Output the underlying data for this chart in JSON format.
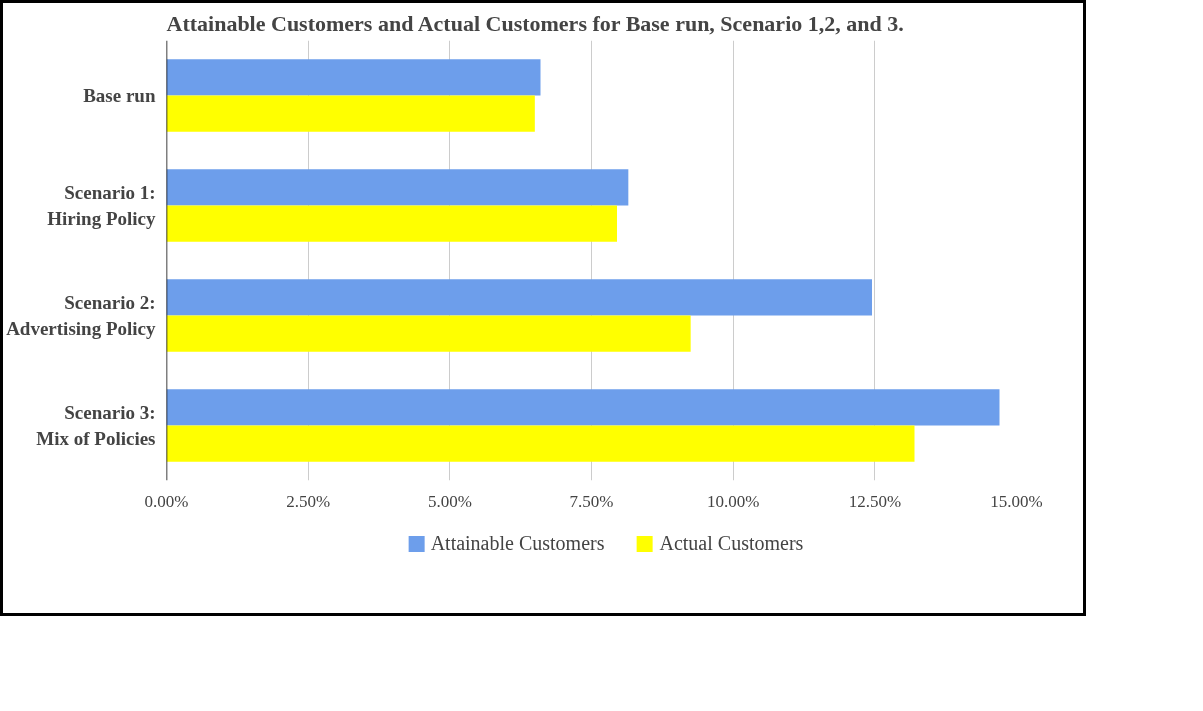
{
  "chart_data": {
    "type": "bar",
    "orientation": "horizontal",
    "title": "Attainable Customers and Actual Customers for Base run, Scenario 1,2, and 3.",
    "categories": [
      "Base run",
      "Scenario 1:\nHiring Policy",
      "Scenario 2:\nAdvertising Policy",
      "Scenario 3:\nMix of Policies"
    ],
    "series": [
      {
        "name": "Attainable Customers",
        "color": "#6d9eeb",
        "values": [
          6.6,
          8.15,
          12.45,
          14.7
        ]
      },
      {
        "name": "Actual Customers",
        "color": "#ffff00",
        "values": [
          6.5,
          7.95,
          9.25,
          13.2
        ]
      }
    ],
    "xlim": [
      0,
      15
    ],
    "xticks": [
      {
        "value": 0,
        "label": "0.00%"
      },
      {
        "value": 2.5,
        "label": "2.50%"
      },
      {
        "value": 5,
        "label": "5.00%"
      },
      {
        "value": 7.5,
        "label": "7.50%"
      },
      {
        "value": 10,
        "label": "10.00%"
      },
      {
        "value": 12.5,
        "label": "12.50%"
      },
      {
        "value": 15,
        "label": "15.00%"
      }
    ],
    "grid": "x",
    "legend": "bottom"
  }
}
